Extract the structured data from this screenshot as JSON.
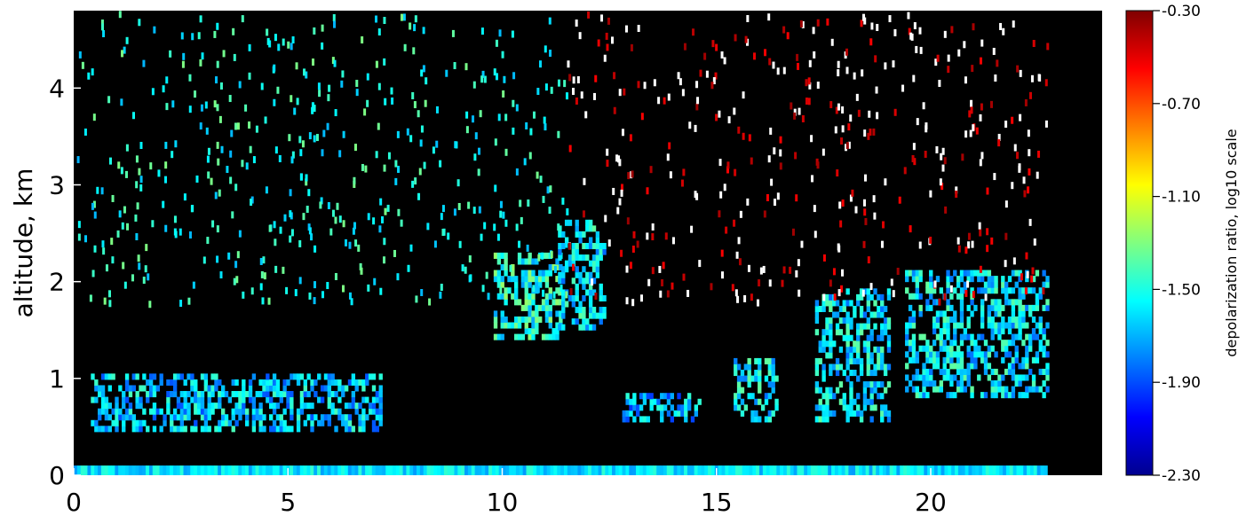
{
  "chart_data": {
    "type": "heatmap",
    "title": "",
    "xlabel": "",
    "ylabel": "altitude, km",
    "xlim": [
      0,
      24
    ],
    "ylim": [
      0,
      4.8
    ],
    "x_ticks": [
      0,
      5,
      10,
      15,
      20
    ],
    "y_ticks": [
      0,
      1,
      2,
      3,
      4
    ],
    "colorbar": {
      "label": "depolarization ratio, log10 scale",
      "range": [
        -2.3,
        -0.3
      ],
      "ticks": [
        "-0.30",
        "-0.70",
        "-1.10",
        "-1.50",
        "-1.90",
        "-2.30"
      ],
      "colormap": "rainbow"
    },
    "background": "#000000",
    "cloud_layers": [
      {
        "x_start": 0.4,
        "x_end": 7.2,
        "alt_bottom": 0.45,
        "alt_top": 1.0,
        "log_dr": -1.65
      },
      {
        "x_start": 9.8,
        "x_end": 11.4,
        "alt_bottom": 1.4,
        "alt_top": 2.3,
        "log_dr": -1.5
      },
      {
        "x_start": 11.3,
        "x_end": 12.4,
        "alt_bottom": 1.5,
        "alt_top": 2.6,
        "log_dr": -1.6
      },
      {
        "x_start": 12.8,
        "x_end": 14.6,
        "alt_bottom": 0.55,
        "alt_top": 0.8,
        "log_dr": -1.7
      },
      {
        "x_start": 15.4,
        "x_end": 16.4,
        "alt_bottom": 0.55,
        "alt_top": 1.2,
        "log_dr": -1.6
      },
      {
        "x_start": 17.3,
        "x_end": 19.0,
        "alt_bottom": 0.55,
        "alt_top": 1.9,
        "log_dr": -1.6
      },
      {
        "x_start": 19.4,
        "x_end": 22.7,
        "alt_bottom": 0.8,
        "alt_top": 2.1,
        "log_dr": -1.6
      }
    ],
    "surface_layer": {
      "x_start": 0,
      "x_end": 22.7,
      "alt_bottom": 0.0,
      "alt_top": 0.1,
      "log_dr": -1.6
    }
  }
}
